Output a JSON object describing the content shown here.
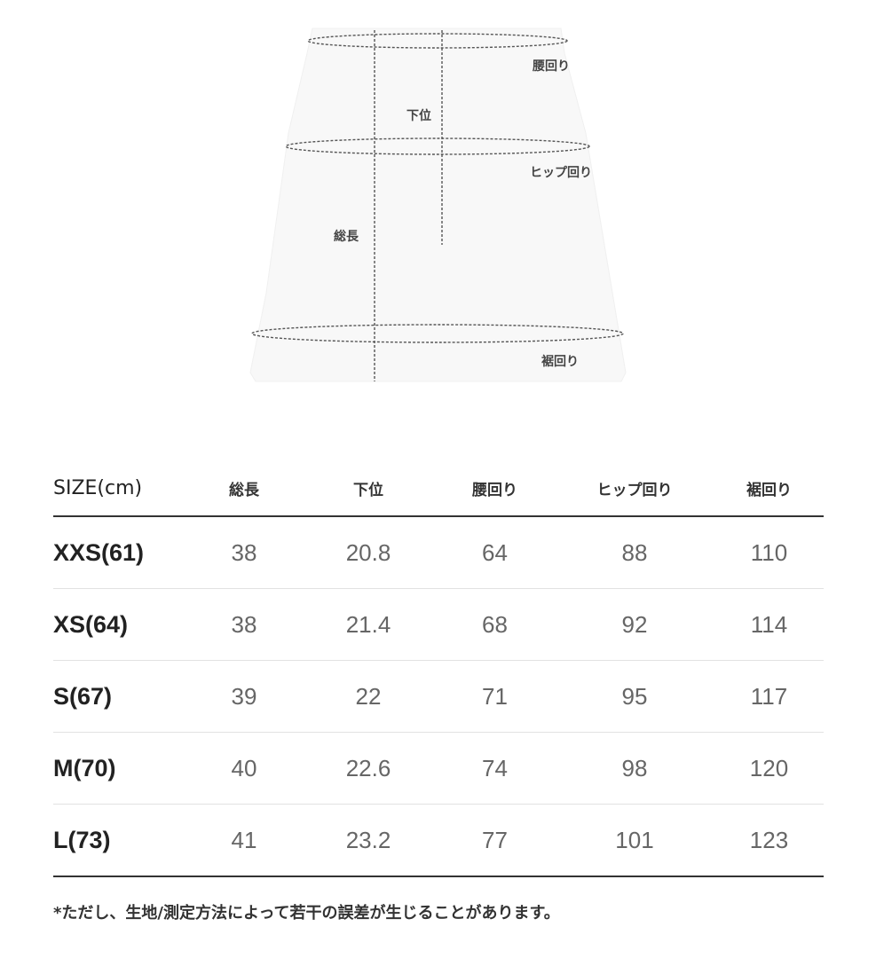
{
  "diagram": {
    "labels": {
      "waist": "腰回り",
      "rise": "下位",
      "hip": "ヒップ回り",
      "length": "総長",
      "hem": "裾回り"
    }
  },
  "table": {
    "headers": [
      "SIZE(cm)",
      "総長",
      "下位",
      "腰回り",
      "ヒップ回り",
      "裾回り"
    ],
    "rows": [
      [
        "XXS(61)",
        "38",
        "20.8",
        "64",
        "88",
        "110"
      ],
      [
        "XS(64)",
        "38",
        "21.4",
        "68",
        "92",
        "114"
      ],
      [
        "S(67)",
        "39",
        "22",
        "71",
        "95",
        "117"
      ],
      [
        "M(70)",
        "40",
        "22.6",
        "74",
        "98",
        "120"
      ],
      [
        "L(73)",
        "41",
        "23.2",
        "77",
        "101",
        "123"
      ]
    ]
  },
  "note": "*ただし、生地/測定方法によって若干の誤差が生じることがあります。"
}
